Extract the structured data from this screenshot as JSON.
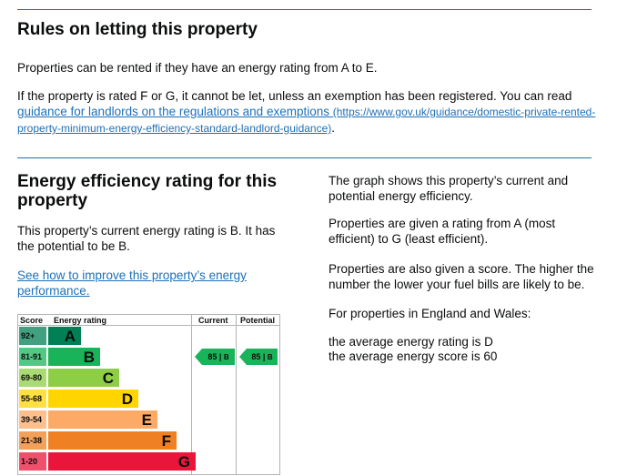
{
  "letting": {
    "title": "Rules on letting this property",
    "p1": "Properties can be rented if they have an energy rating from A to E.",
    "p2_text": "If the property is rated F or G, it cannot be let, unless an exemption has been registered. You can read ",
    "p2_link": "guidance for landlords on the regulations and exemptions",
    "p2_url": "(https://www.gov.uk/guidance/domestic-private-rented-property-minimum-energy-efficiency-standard-landlord-guidance)",
    "p2_end": "."
  },
  "efficiency": {
    "title": "Energy efficiency rating for this property",
    "current_text": "This property’s current energy rating is B. It has the potential to be B.",
    "improve_link": "See how to improve this property’s energy performance."
  },
  "side": {
    "p1": "The graph shows this property’s current and potential energy efficiency.",
    "p2": "Properties are given a rating from A (most efficient) to G (least efficient).",
    "p3": "Properties are also given a score. The higher the number the lower your fuel bills are likely to be.",
    "p4": "For properties in England and Wales:",
    "p5": "the average energy rating is D",
    "p6": "the average energy score is 60"
  },
  "epc": {
    "headers": {
      "score": "Score",
      "rating": "Energy rating",
      "current": "Current",
      "potential": "Potential"
    },
    "bands": [
      {
        "range": "92+",
        "letter": "A",
        "color": "#008054"
      },
      {
        "range": "81-91",
        "letter": "B",
        "color": "#19b459"
      },
      {
        "range": "69-80",
        "letter": "C",
        "color": "#8dce46"
      },
      {
        "range": "55-68",
        "letter": "D",
        "color": "#ffd500"
      },
      {
        "range": "39-54",
        "letter": "E",
        "color": "#fcaa65"
      },
      {
        "range": "21-38",
        "letter": "F",
        "color": "#ef8023"
      },
      {
        "range": "1-20",
        "letter": "G",
        "color": "#e9153b"
      }
    ],
    "current": {
      "score": "85",
      "band": "B"
    },
    "potential": {
      "score": "85",
      "band": "B"
    }
  }
}
